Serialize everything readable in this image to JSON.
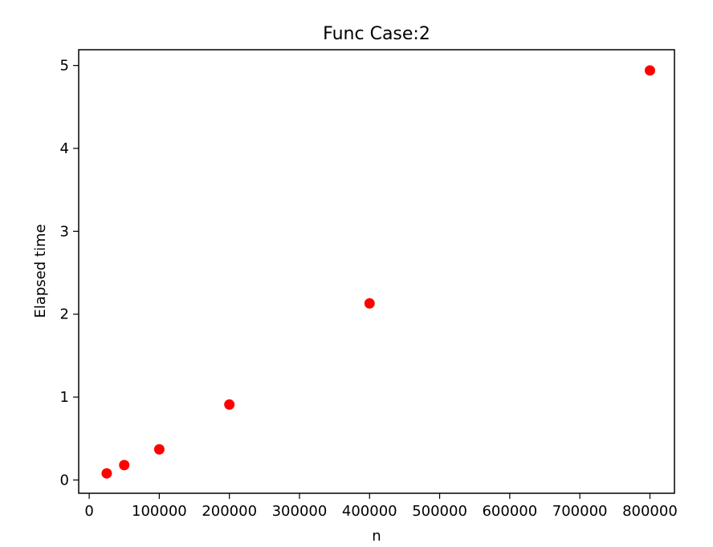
{
  "chart_data": {
    "type": "scatter",
    "title": "Func Case:2",
    "xlabel": "n",
    "ylabel": "Elapsed time",
    "xlim": [
      -15000,
      835000
    ],
    "ylim": [
      -0.16,
      5.19
    ],
    "xticks": [
      0,
      100000,
      200000,
      300000,
      400000,
      500000,
      600000,
      700000,
      800000
    ],
    "yticks": [
      0,
      1,
      2,
      3,
      4,
      5
    ],
    "grid": false,
    "legend": "none",
    "marker_color": "#ff0000",
    "series": [
      {
        "x": [
          25000,
          50000,
          100000,
          200000,
          400000,
          800000
        ],
        "y": [
          0.08,
          0.18,
          0.37,
          0.91,
          2.13,
          4.94
        ]
      }
    ]
  }
}
